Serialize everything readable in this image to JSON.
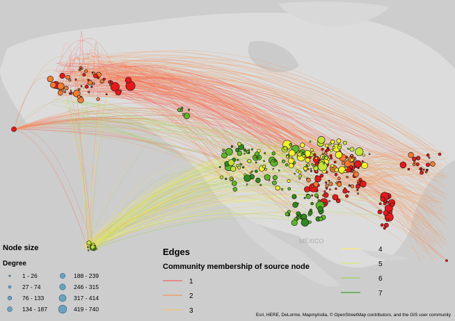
{
  "node_legend": {
    "title": "Node size",
    "subtitle": "Degree",
    "items": [
      {
        "label": "1 - 26",
        "r": 1.2
      },
      {
        "label": "27 - 74",
        "r": 2
      },
      {
        "label": "76 - 133",
        "r": 2.8
      },
      {
        "label": "134 - 187",
        "r": 3.4
      },
      {
        "label": "188 - 239",
        "r": 3.6
      },
      {
        "label": "246 - 315",
        "r": 4.2
      },
      {
        "label": "317 - 414",
        "r": 5
      },
      {
        "label": "419 - 740",
        "r": 5.8
      }
    ],
    "node_color": "#6aa3c2"
  },
  "edge_legend": {
    "title": "Edges",
    "subtitle": "Community membership of source node",
    "items": [
      {
        "label": "1",
        "color": "#f2615f"
      },
      {
        "label": "2",
        "color": "#f79455"
      },
      {
        "label": "3",
        "color": "#f7c36a"
      },
      {
        "label": "4",
        "color": "#f5f06a"
      },
      {
        "label": "5",
        "color": "#d7ec73"
      },
      {
        "label": "6",
        "color": "#9fd35a"
      },
      {
        "label": "7",
        "color": "#3e9b2c"
      }
    ]
  },
  "node_colors": {
    "red": "#e3191c",
    "orange": "#f07b35",
    "yellow": "#f2f230",
    "yellowgreen": "#c4e23a",
    "green": "#5fb52b",
    "darkgreen": "#2d8a1f"
  },
  "credit": "Esri, HERE, DeLorme, MapmyIndia, © OpenStreetMap contributors, and the GIS user community"
}
